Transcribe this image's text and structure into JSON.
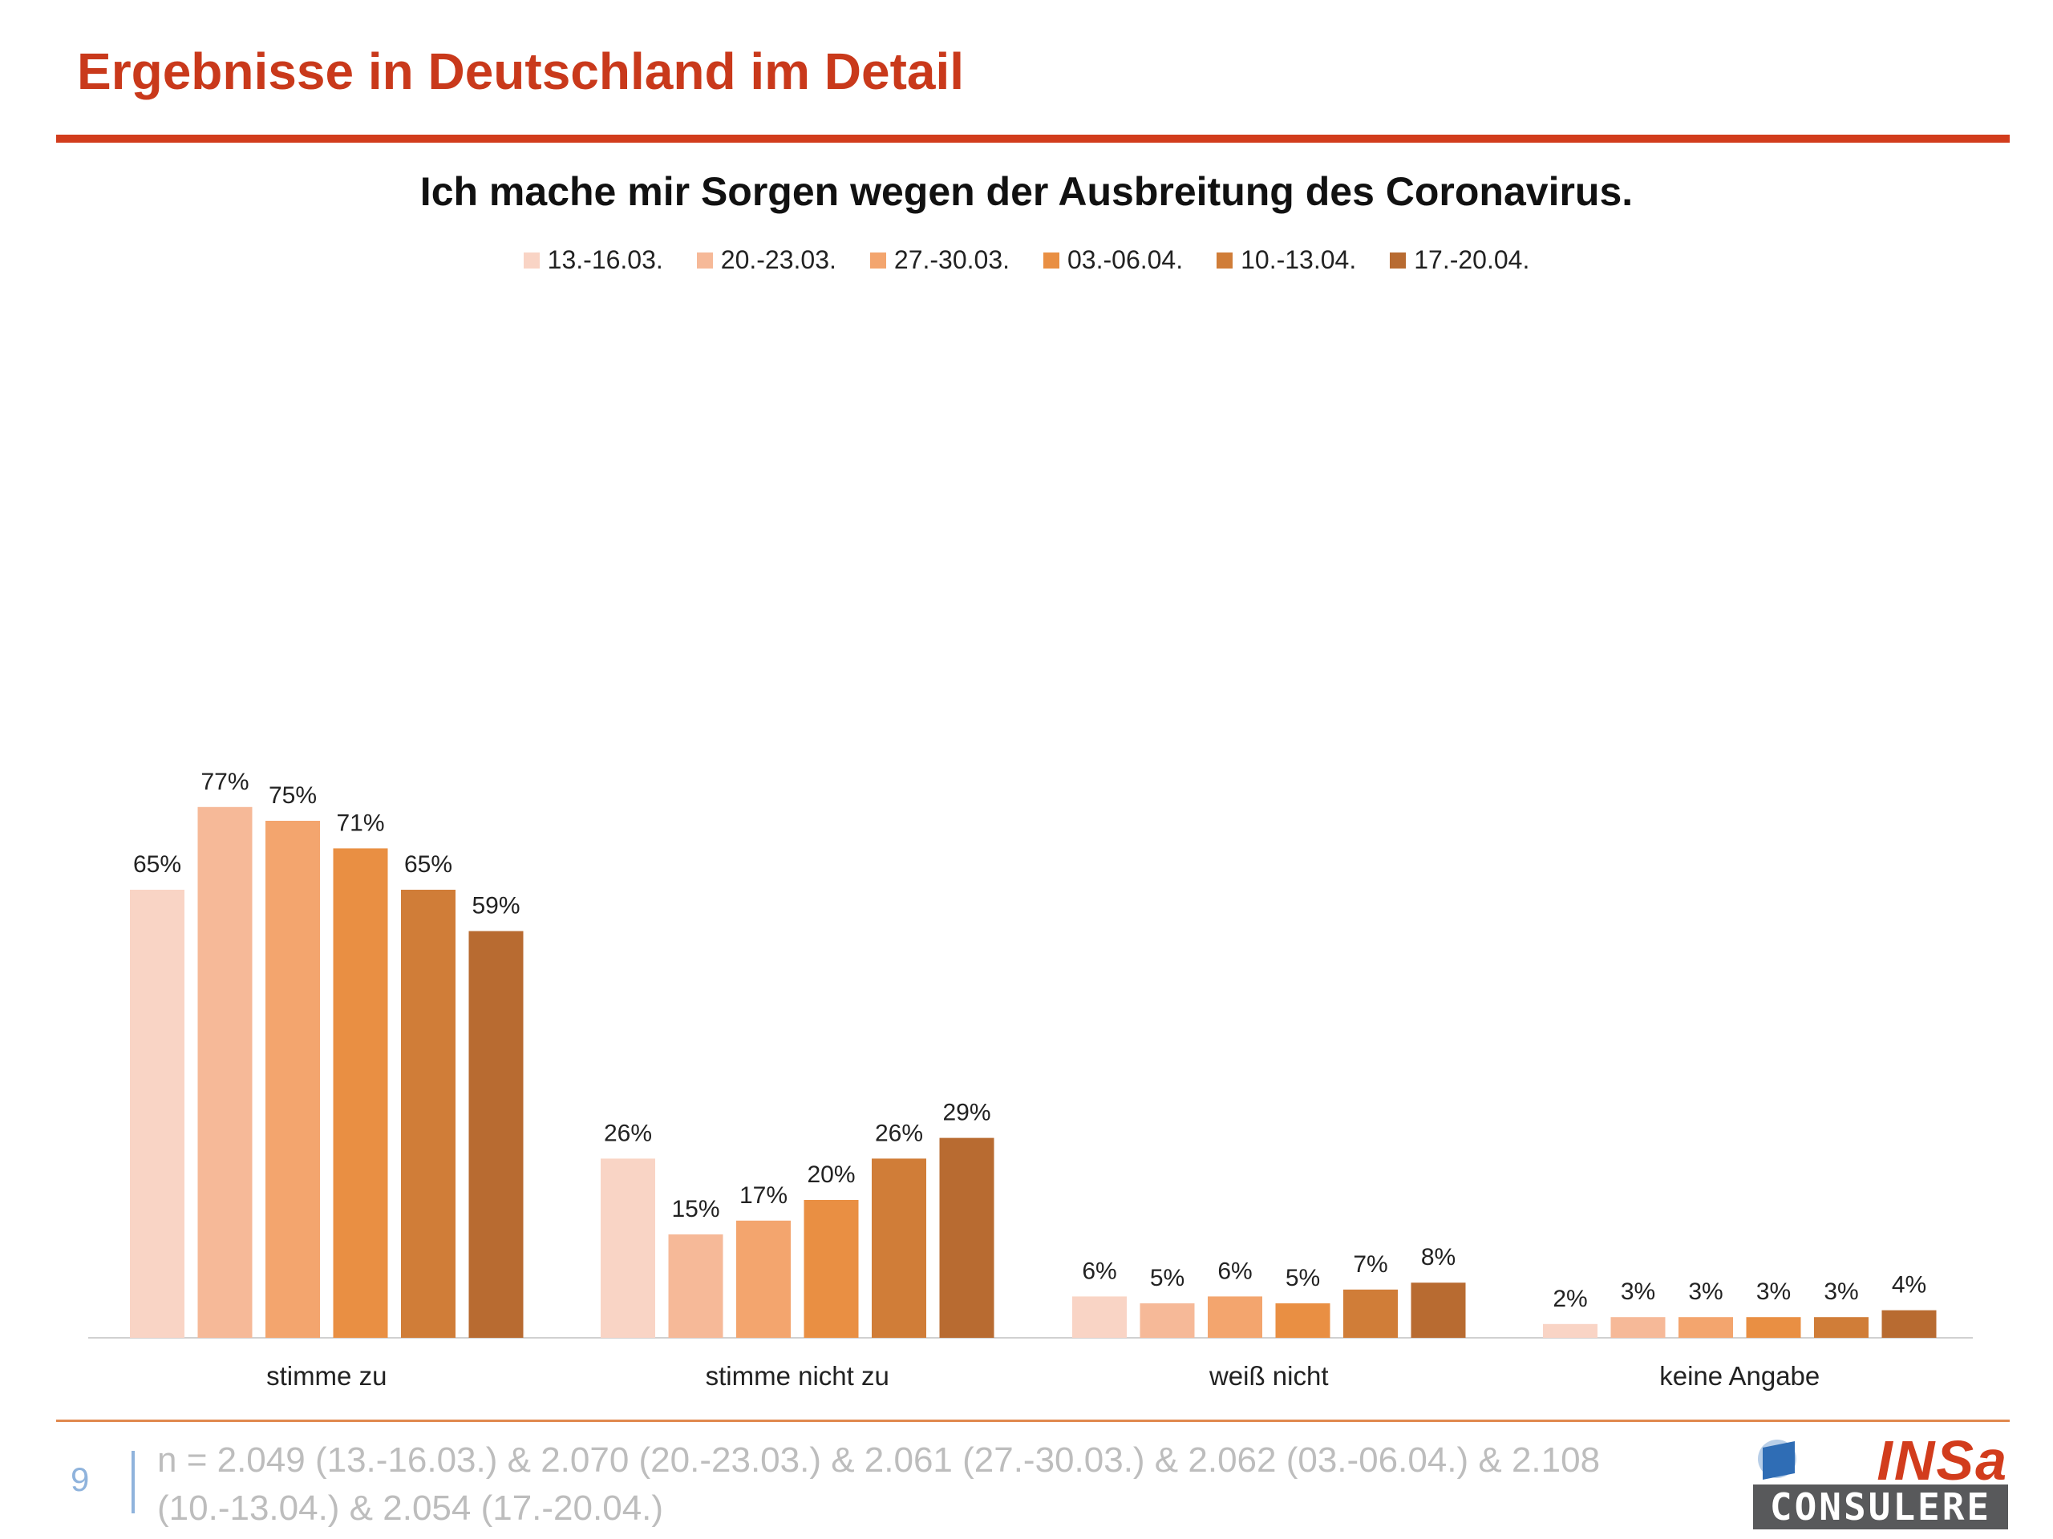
{
  "header": {
    "title": "Ergebnisse in Deutschland im Detail"
  },
  "footer": {
    "page_number": "9",
    "note": "n = 2.049 (13.-16.03.) & 2.070 (20.-23.03.) & 2.061 (27.-30.03.) & 2.062 (03.-06.04.) & 2.108 (10.-13.04.) & 2.054 (17.-20.04.)",
    "logo": {
      "top_text": "INSa",
      "bottom_text": "CONSULERE"
    }
  },
  "colors": {
    "title": "#c9391b",
    "rule": "#d23c1c",
    "series": [
      "#f9d4c5",
      "#f6b998",
      "#f3a56e",
      "#e98f43",
      "#d07d38",
      "#b86b31"
    ]
  },
  "chart_data": {
    "type": "bar",
    "title": "Ich mache mir Sorgen wegen der Ausbreitung des Coronavirus.",
    "categories": [
      "stimme zu",
      "stimme nicht zu",
      "weiß nicht",
      "keine Angabe"
    ],
    "series": [
      {
        "name": "13.-16.03.",
        "values": [
          65,
          26,
          6,
          2
        ],
        "labels": [
          "65%",
          "26%",
          "6%",
          "2%"
        ]
      },
      {
        "name": "20.-23.03.",
        "values": [
          77,
          15,
          5,
          3
        ],
        "labels": [
          "77%",
          "15%",
          "5%",
          "3%"
        ]
      },
      {
        "name": "27.-30.03.",
        "values": [
          75,
          17,
          6,
          3
        ],
        "labels": [
          "75%",
          "17%",
          "6%",
          "3%"
        ]
      },
      {
        "name": "03.-06.04.",
        "values": [
          71,
          20,
          5,
          3
        ],
        "labels": [
          "71%",
          "20%",
          "5%",
          "3%"
        ]
      },
      {
        "name": "10.-13.04.",
        "values": [
          65,
          26,
          7,
          3
        ],
        "labels": [
          "65%",
          "26%",
          "7%",
          "3%"
        ]
      },
      {
        "name": "17.-20.04.",
        "values": [
          59,
          29,
          8,
          4
        ],
        "labels": [
          "59%",
          "29%",
          "8%",
          "4%"
        ]
      }
    ],
    "ylim": [
      0,
      100
    ],
    "grid": false,
    "legend_position": "top",
    "xlabel": "",
    "ylabel": ""
  }
}
